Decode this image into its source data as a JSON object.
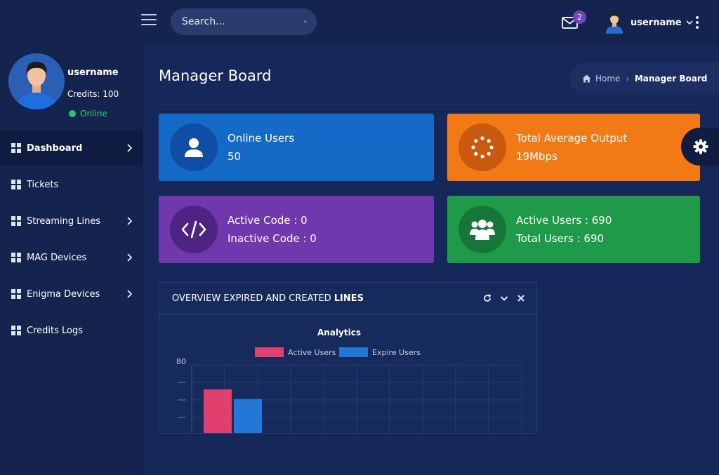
{
  "topbar": {
    "search_placeholder": "Search...",
    "mail_badge": "2",
    "username": "username"
  },
  "sidebar": {
    "profile": {
      "name": "username",
      "credits": "Credits: 100",
      "status": "Online"
    },
    "items": [
      {
        "label": "Dashboard",
        "chevron": true,
        "active": true
      },
      {
        "label": "Tickets",
        "chevron": false,
        "active": false
      },
      {
        "label": "Streaming Lines",
        "chevron": true,
        "active": false
      },
      {
        "label": "MAG Devices",
        "chevron": true,
        "active": false
      },
      {
        "label": "Enigma Devices",
        "chevron": true,
        "active": false
      },
      {
        "label": "Credits Logs",
        "chevron": false,
        "active": false
      }
    ]
  },
  "main": {
    "title": "Manager Board",
    "breadcrumb": {
      "home": "Home",
      "current": "Manager Board"
    },
    "cards": {
      "online": {
        "line1": "Online Users",
        "line2": "50"
      },
      "output": {
        "line1": "Total Average Output",
        "line2": "19Mbps"
      },
      "code": {
        "line1": "Active Code : 0",
        "line2": "Inactive Code : 0"
      },
      "users": {
        "line1": "Active Users : 690",
        "line2": "Total Users : 690"
      }
    },
    "panel": {
      "title_prefix": "OVERVIEW EXPIRED AND CREATED",
      "title_strong": "LINES"
    }
  },
  "colors": {
    "background": "#16285a",
    "active_users": "#e0406e",
    "expire_users": "#2377d6"
  },
  "chart_data": {
    "type": "bar",
    "title": "Analytics",
    "series": [
      {
        "name": "Active Users",
        "values": [
          52
        ]
      },
      {
        "name": "Expire Users",
        "values": [
          41
        ]
      }
    ],
    "categories": [
      ""
    ],
    "ylim": [
      0,
      80
    ],
    "y_tick_labels": [
      "80"
    ],
    "grid": true,
    "legend": "top"
  }
}
